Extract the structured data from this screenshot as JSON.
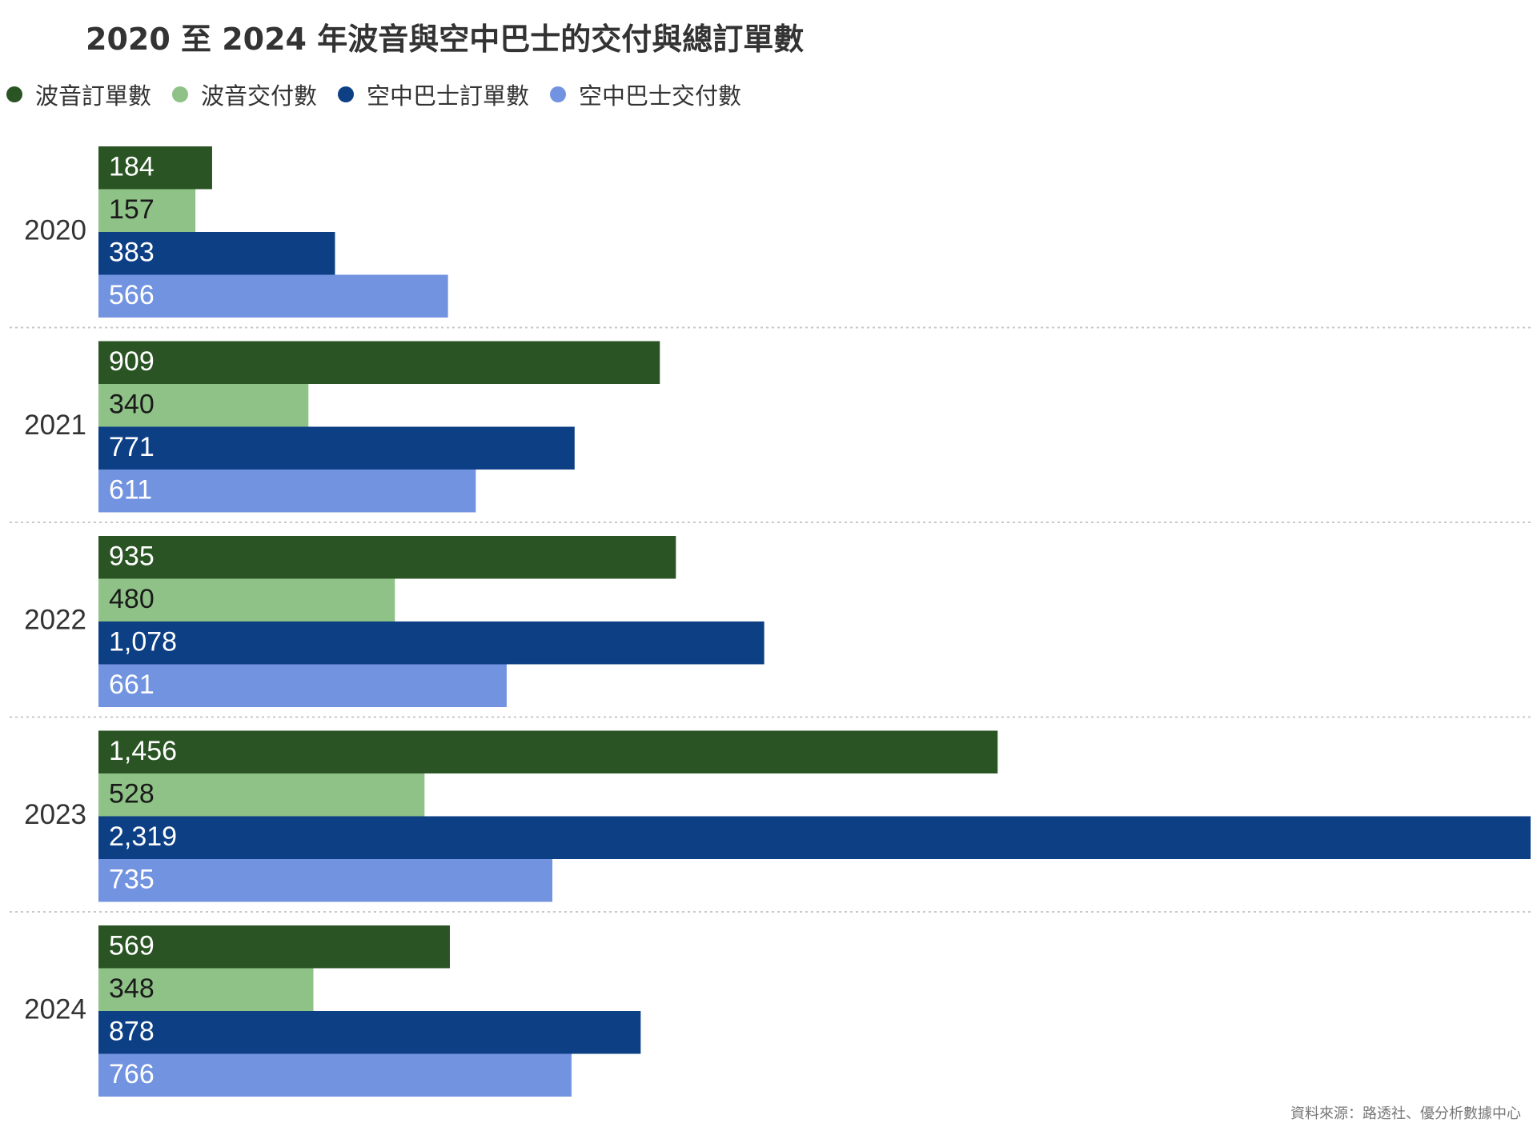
{
  "title": "2020 至 2024 年波音與空中巴士的交付與總訂單數",
  "source": "資料來源：路透社、優分析數據中心",
  "legend": [
    {
      "label": "波音訂單數",
      "color": "#2a5423"
    },
    {
      "label": "波音交付數",
      "color": "#8fc287"
    },
    {
      "label": "空中巴士訂單數",
      "color": "#0d3f84"
    },
    {
      "label": "空中巴士交付數",
      "color": "#7293e0"
    }
  ],
  "chart_data": {
    "type": "bar",
    "orientation": "horizontal",
    "categories": [
      "2020",
      "2021",
      "2022",
      "2023",
      "2024"
    ],
    "series": [
      {
        "name": "波音訂單數",
        "color": "#2a5423",
        "label_color": "#ffffff",
        "values": [
          184,
          909,
          935,
          1456,
          569
        ],
        "labels": [
          "184",
          "909",
          "935",
          "1,456",
          "569"
        ]
      },
      {
        "name": "波音交付數",
        "color": "#8fc287",
        "label_color": "#1a1a1a",
        "values": [
          157,
          340,
          480,
          528,
          348
        ],
        "labels": [
          "157",
          "340",
          "480",
          "528",
          "348"
        ]
      },
      {
        "name": "空中巴士訂單數",
        "color": "#0d3f84",
        "label_color": "#ffffff",
        "values": [
          383,
          771,
          1078,
          2319,
          878
        ],
        "labels": [
          "383",
          "771",
          "1,078",
          "2,319",
          "878"
        ]
      },
      {
        "name": "空中巴士交付數",
        "color": "#7293e0",
        "label_color": "#ffffff",
        "values": [
          566,
          611,
          661,
          735,
          766
        ],
        "labels": [
          "566",
          "611",
          "661",
          "735",
          "766"
        ]
      }
    ],
    "xlim": [
      0,
      2319
    ],
    "grid": false,
    "legend_position": "top-left",
    "group_separators": "dotted"
  }
}
